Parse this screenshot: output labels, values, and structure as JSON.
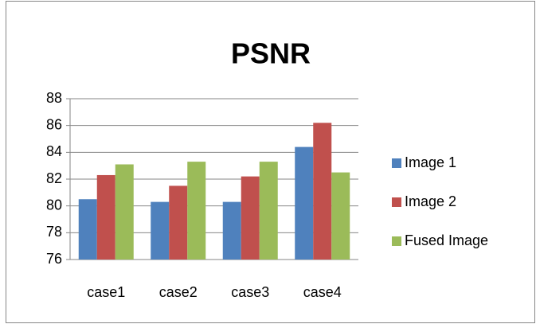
{
  "chart_data": {
    "type": "bar",
    "title": "PSNR",
    "categories": [
      "case1",
      "case2",
      "case3",
      "case4"
    ],
    "series": [
      {
        "name": "Image 1",
        "color": "#4f81bd",
        "values": [
          80.5,
          80.3,
          80.3,
          84.4
        ]
      },
      {
        "name": "Image 2",
        "color": "#c0504d",
        "values": [
          82.3,
          81.5,
          82.2,
          86.2
        ]
      },
      {
        "name": "Fused Image",
        "color": "#9bbb59",
        "values": [
          83.1,
          83.3,
          83.3,
          82.5
        ]
      }
    ],
    "ylim": [
      76,
      88
    ],
    "yticks": [
      76,
      78,
      80,
      82,
      84,
      86,
      88
    ],
    "grid": true,
    "legend": "right"
  }
}
